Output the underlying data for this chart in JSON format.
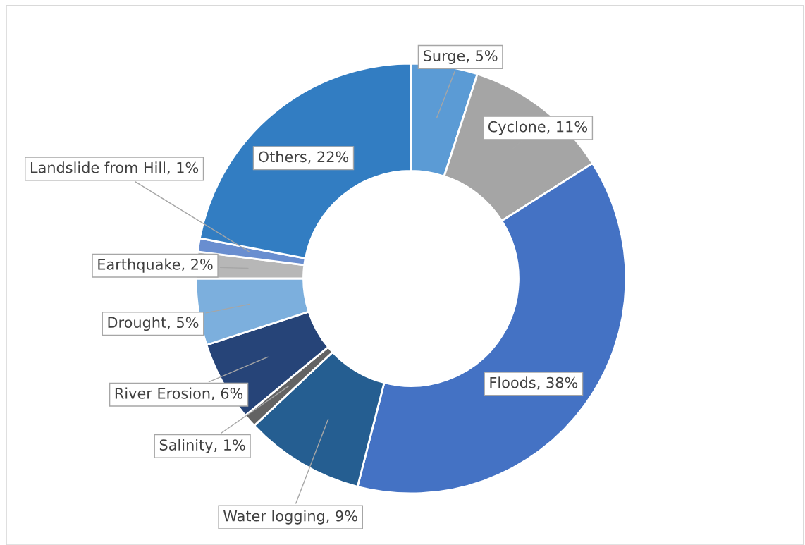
{
  "chart_data": {
    "type": "donut",
    "categories": [
      "Surge",
      "Cyclone",
      "Floods",
      "Water logging",
      "Salinity",
      "River Erosion",
      "Drought",
      "Earthquake",
      "Landslide from Hill",
      "Others"
    ],
    "values": [
      5,
      11,
      38,
      9,
      1,
      6,
      5,
      2,
      1,
      22
    ],
    "value_labels": [
      "5%",
      "11%",
      "38%",
      "9%",
      "1%",
      "6%",
      "5%",
      "2%",
      "1%",
      "22%"
    ],
    "colors": [
      "#5b9bd5",
      "#a5a5a5",
      "#4472c4",
      "#255e91",
      "#636363",
      "#264478",
      "#7cafdd",
      "#b7b7b7",
      "#698ed0",
      "#327dc2"
    ],
    "legend": false
  }
}
